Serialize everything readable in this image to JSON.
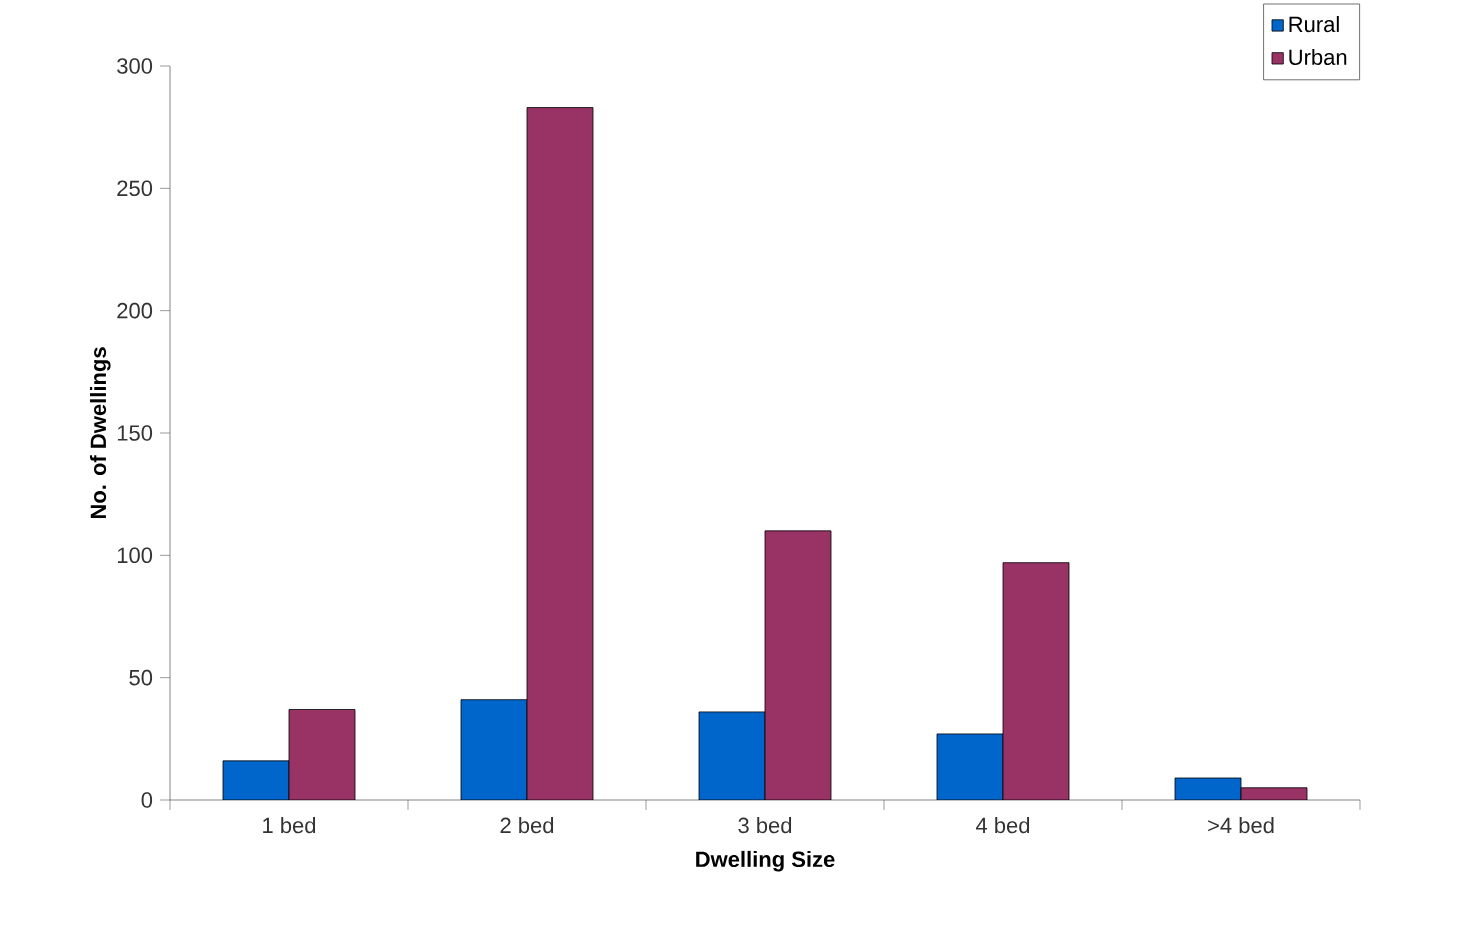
{
  "chart_data": {
    "type": "bar",
    "xlabel": "Dwelling Size",
    "ylabel": "No. of Dwellings",
    "categories": [
      "1 bed",
      "2 bed",
      "3 bed",
      "4 bed",
      ">4 bed"
    ],
    "series": [
      {
        "name": "Rural",
        "color": "#0066cc",
        "values": [
          16,
          41,
          36,
          27,
          9
        ]
      },
      {
        "name": "Urban",
        "color": "#993366",
        "values": [
          37,
          283,
          110,
          97,
          5
        ]
      }
    ],
    "ylim": [
      0,
      300
    ],
    "yticks": [
      0,
      50,
      100,
      150,
      200,
      250,
      300
    ],
    "grid": false,
    "legend": "top right"
  }
}
